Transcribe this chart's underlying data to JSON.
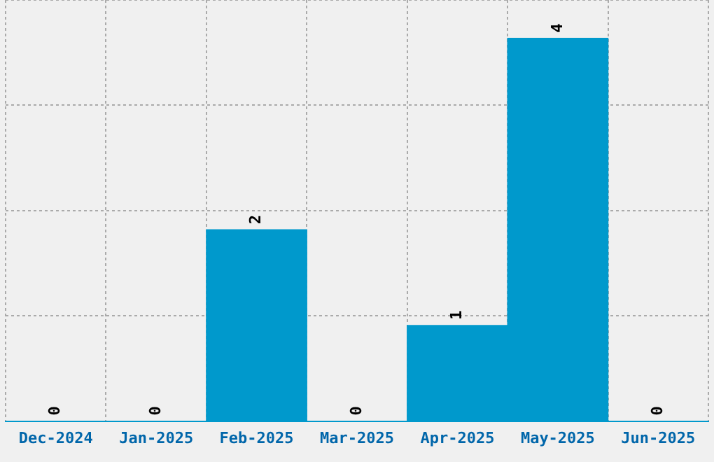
{
  "chart_data": {
    "type": "bar",
    "categories": [
      "Dec-2024",
      "Jan-2025",
      "Feb-2025",
      "Mar-2025",
      "Apr-2025",
      "May-2025",
      "Jun-2025"
    ],
    "values": [
      0,
      0,
      2,
      0,
      1,
      4,
      0
    ],
    "color": "#0099cc",
    "ylim": [
      0,
      4.4
    ],
    "yticks": [
      {
        "value": 0,
        "label": null
      },
      {
        "value": 1.1,
        "label": null
      },
      {
        "value": 2.2,
        "label": null
      },
      {
        "value": 3.3,
        "label": null
      },
      {
        "value": 4.4,
        "label": null
      }
    ],
    "tick_labels": "x",
    "grid": true,
    "data_labels": true
  }
}
